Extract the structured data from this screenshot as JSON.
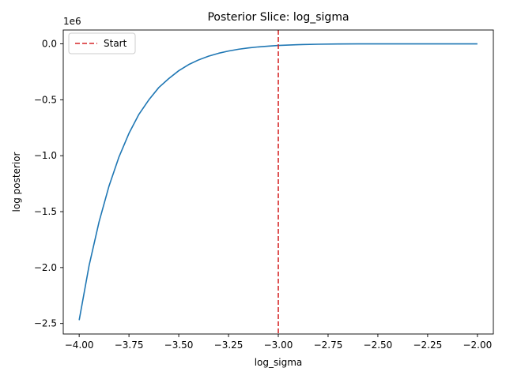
{
  "chart_data": {
    "type": "line",
    "title": "Posterior Slice: log_sigma",
    "xlabel": "log_sigma",
    "ylabel": "log posterior",
    "y_offset_label": "1e6",
    "xlim": [
      -4.08,
      -1.92
    ],
    "ylim": [
      -2.594,
      0.124
    ],
    "xticks": [
      -4.0,
      -3.75,
      -3.5,
      -3.25,
      -3.0,
      -2.75,
      -2.5,
      -2.25,
      -2.0
    ],
    "xtick_labels": [
      "−4.00",
      "−3.75",
      "−3.50",
      "−3.25",
      "−3.00",
      "−2.75",
      "−2.50",
      "−2.25",
      "−2.00"
    ],
    "yticks": [
      0.0,
      -0.5,
      -1.0,
      -1.5,
      -2.0,
      -2.5
    ],
    "ytick_labels": [
      "0.0",
      "−0.5",
      "−1.0",
      "−1.5",
      "−2.0",
      "−2.5"
    ],
    "grid": false,
    "legend_position": "upper-left",
    "series": [
      {
        "color": "#1f77b4",
        "x": [
          -4.0,
          -3.95,
          -3.9,
          -3.85,
          -3.8,
          -3.75,
          -3.7,
          -3.65,
          -3.6,
          -3.55,
          -3.5,
          -3.45,
          -3.4,
          -3.35,
          -3.3,
          -3.25,
          -3.2,
          -3.15,
          -3.1,
          -3.05,
          -3.0,
          -2.9,
          -2.8,
          -2.7,
          -2.6,
          -2.5,
          -2.4,
          -2.3,
          -2.2,
          -2.1,
          -2.0
        ],
        "y": [
          -2.47,
          -1.98,
          -1.59,
          -1.27,
          -1.01,
          -0.8,
          -0.63,
          -0.5,
          -0.39,
          -0.31,
          -0.24,
          -0.185,
          -0.143,
          -0.11,
          -0.084,
          -0.064,
          -0.048,
          -0.036,
          -0.027,
          -0.02,
          -0.014,
          -0.007,
          -0.003,
          -0.001,
          0.0,
          0.0,
          0.0,
          0.0,
          0.0,
          0.0,
          0.0
        ]
      }
    ],
    "vlines": [
      {
        "name": "Start",
        "x": -3.0,
        "color": "#d62728",
        "style": "dashed"
      }
    ]
  }
}
